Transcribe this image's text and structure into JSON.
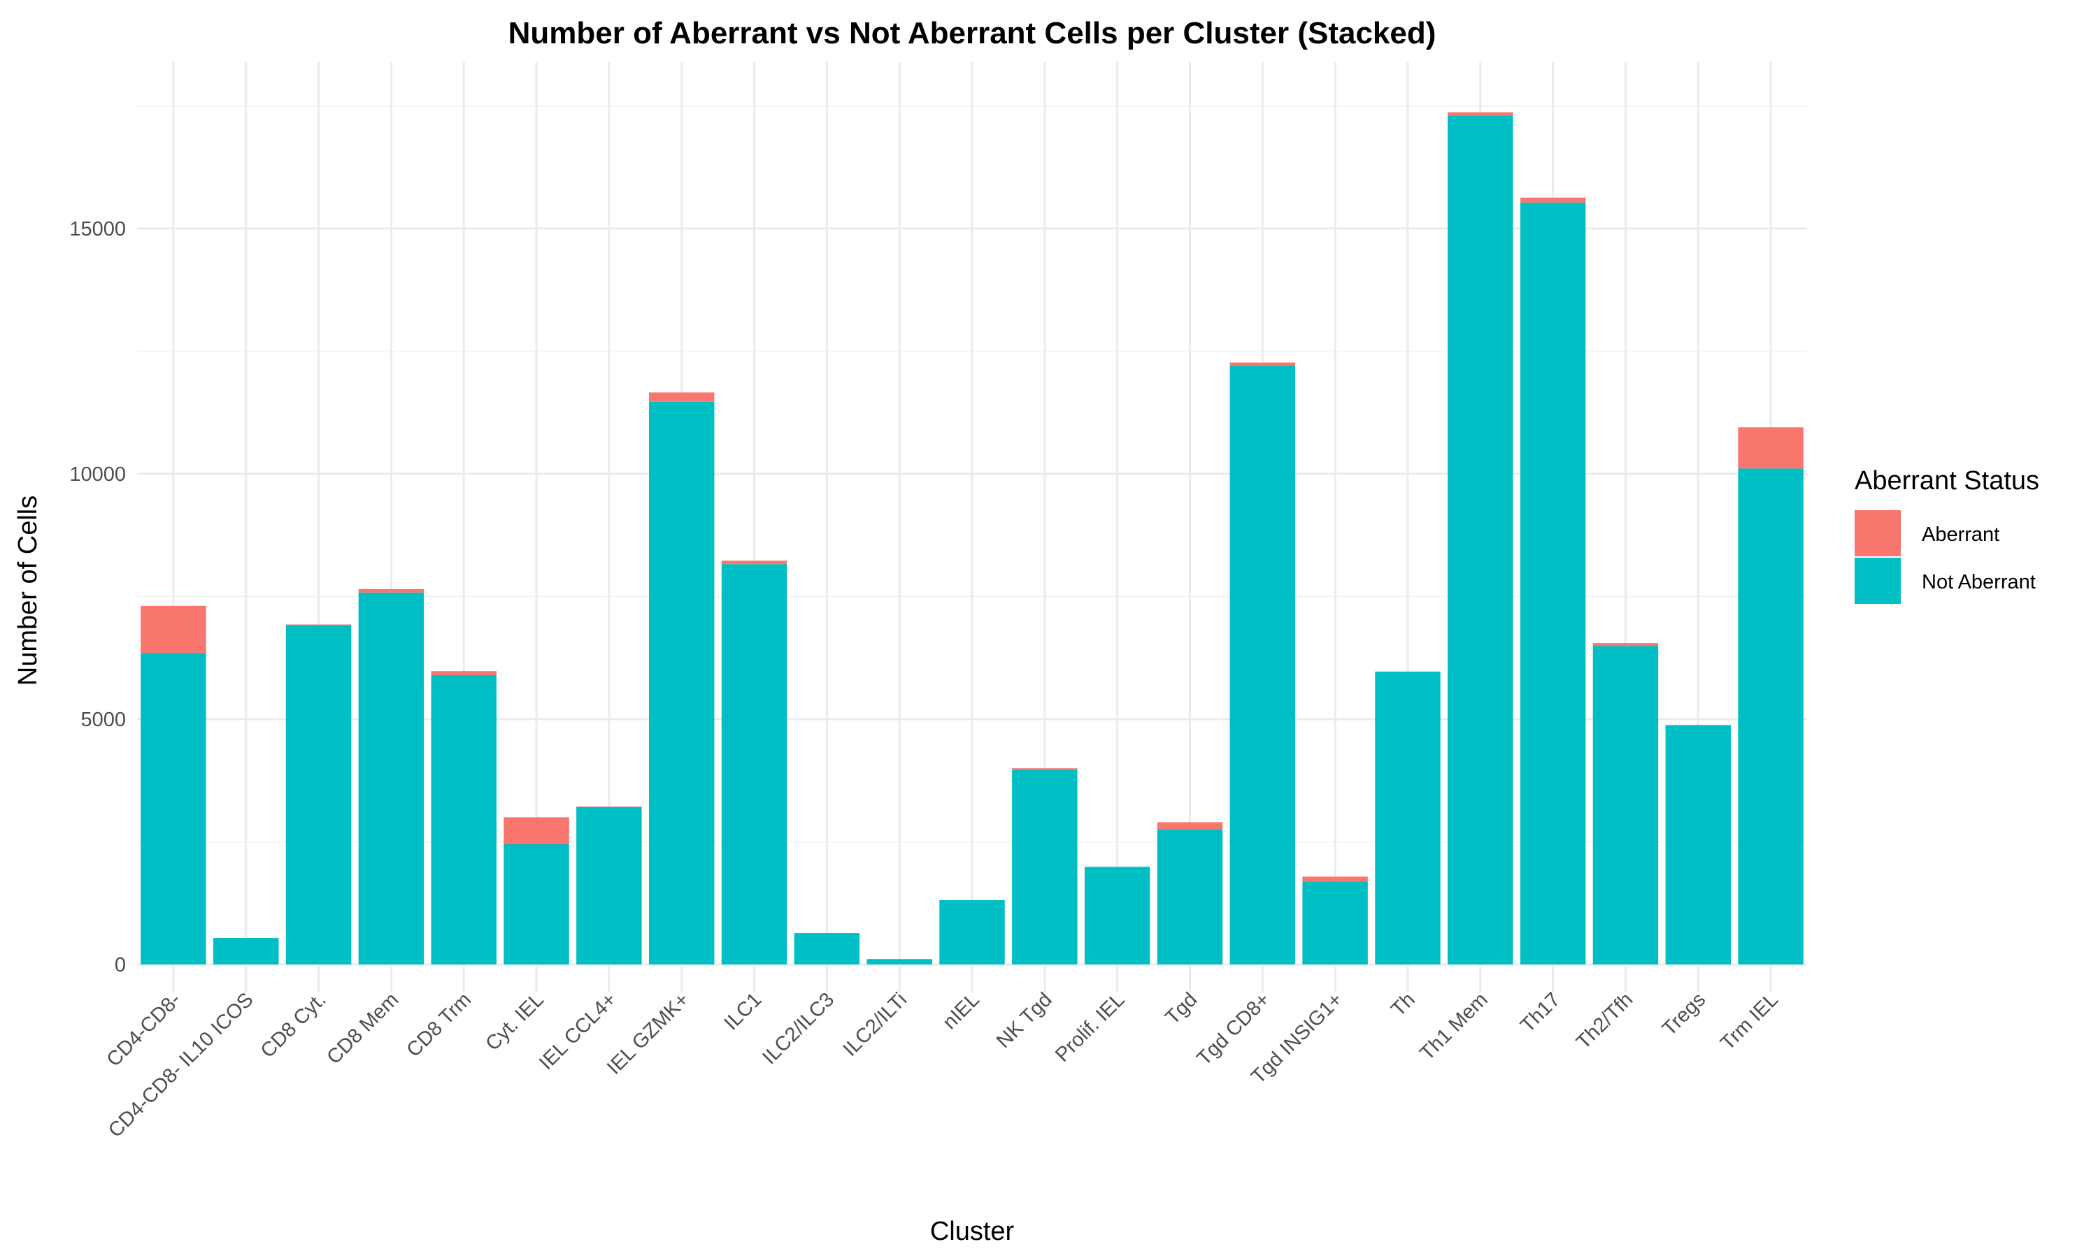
{
  "chart_data": {
    "type": "bar",
    "stacked": true,
    "title": "Number of Aberrant vs Not Aberrant Cells per Cluster (Stacked)",
    "xlabel": "Cluster",
    "ylabel": "Number of Cells",
    "ylim": [
      0,
      18000
    ],
    "yticks": [
      0,
      5000,
      10000,
      15000
    ],
    "ytick_labels": [
      "0",
      "5000",
      "10000",
      "15000"
    ],
    "grid": true,
    "legend": {
      "title": "Aberrant Status",
      "position": "right"
    },
    "categories": [
      "CD4-CD8-",
      "CD4-CD8- IL10 ICOS",
      "CD8 Cyt.",
      "CD8 Mem",
      "CD8 Trm",
      "Cyt. IEL",
      "IEL CCL4+",
      "IEL GZMK+",
      "ILC1",
      "ILC2/ILC3",
      "ILC2/ILTi",
      "nIEL",
      "NK Tgd",
      "Prolif. IEL",
      "Tgd",
      "Tgd CD8+",
      "Tgd INSIG1+",
      "Th",
      "Th1 Mem",
      "Th17",
      "Th2/Tfh",
      "Tregs",
      "Trm IEL"
    ],
    "series": [
      {
        "name": "Not Aberrant",
        "color": "#00BFC4",
        "values": [
          6350,
          540,
          6920,
          7580,
          5900,
          2450,
          3210,
          11470,
          8160,
          640,
          110,
          1310,
          3960,
          1990,
          2750,
          12200,
          1690,
          5970,
          17300,
          15530,
          6490,
          4880,
          10110
        ]
      },
      {
        "name": "Aberrant",
        "color": "#F8766D",
        "values": [
          960,
          0,
          10,
          70,
          80,
          550,
          10,
          190,
          70,
          0,
          0,
          0,
          40,
          0,
          150,
          70,
          100,
          0,
          70,
          100,
          60,
          0,
          840
        ]
      }
    ]
  }
}
